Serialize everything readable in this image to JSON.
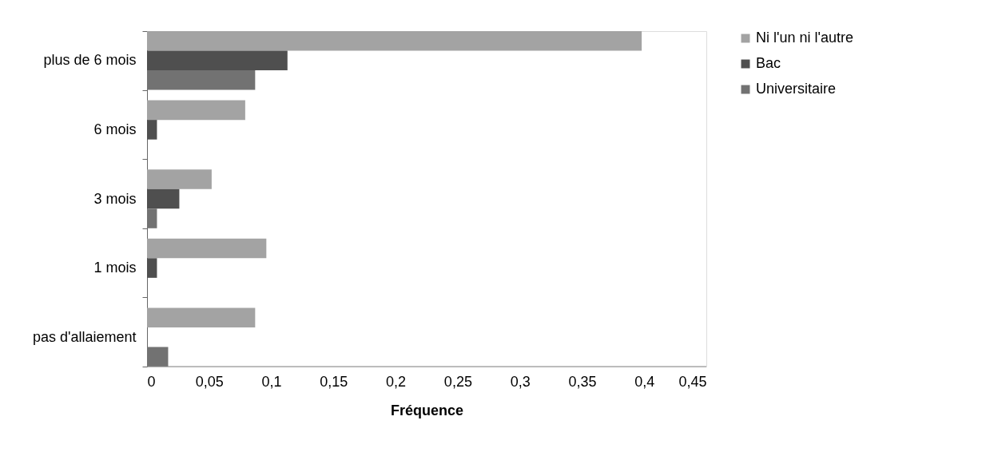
{
  "chart_data": {
    "type": "bar",
    "orientation": "horizontal",
    "xlabel": "Fréquence",
    "categories": [
      "plus de 6 mois",
      "6 mois",
      "3 mois",
      "1 mois",
      "pas d'allaiement"
    ],
    "series": [
      {
        "name": "Ni l'un ni l'autre",
        "color": "#a3a3a3",
        "values": [
          0.398,
          0.079,
          0.052,
          0.096,
          0.087
        ]
      },
      {
        "name": "Bac",
        "color": "#4f4f4f",
        "values": [
          0.113,
          0.008,
          0.026,
          0.008,
          0
        ]
      },
      {
        "name": "Universitaire",
        "color": "#727272",
        "values": [
          0.087,
          0,
          0.008,
          0,
          0.017
        ]
      }
    ],
    "xlim": [
      0,
      0.45
    ],
    "xticks": [
      {
        "value": 0,
        "label": "0"
      },
      {
        "value": 0.05,
        "label": "0,05"
      },
      {
        "value": 0.1,
        "label": "0,1"
      },
      {
        "value": 0.15,
        "label": "0,15"
      },
      {
        "value": 0.2,
        "label": "0,2"
      },
      {
        "value": 0.25,
        "label": "0,25"
      },
      {
        "value": 0.3,
        "label": "0,3"
      },
      {
        "value": 0.35,
        "label": "0,35"
      },
      {
        "value": 0.4,
        "label": "0,4"
      },
      {
        "value": 0.45,
        "label": "0,45"
      }
    ],
    "grid": false,
    "legend": "right"
  }
}
